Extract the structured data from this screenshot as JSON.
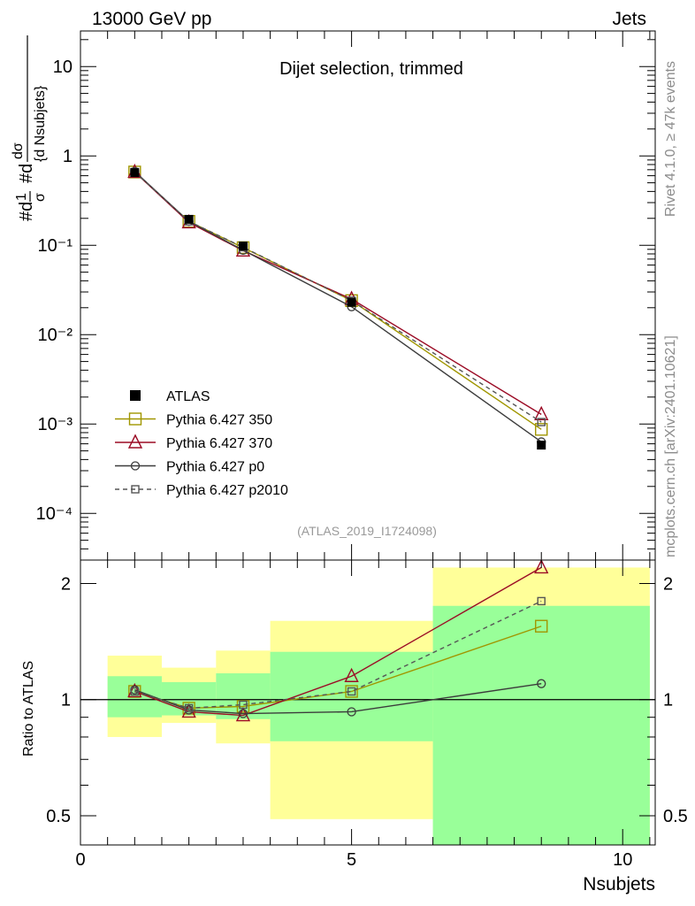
{
  "header": {
    "energy_label": "13000 GeV pp",
    "category_label": "Jets",
    "rivet_label": "Rivet 4.1.0, ≥ 47k events",
    "source_label": "mcplots.cern.ch [arXiv:2401.10621]"
  },
  "colors": {
    "data": "#000000",
    "p350": "#a09600",
    "p370": "#9b0b25",
    "p0": "#3c3c3c",
    "p2010": "#555555",
    "band_outer": "#ffff99",
    "band_inner": "#99ff99"
  },
  "chart_data": [
    {
      "type": "line",
      "scale": "log",
      "title": "Dijet selection, trimmed",
      "analysis_label": "(ATLAS_2019_I1724098)",
      "ylabel": "#d 1/σ #d dσ/{d Nsubjets}",
      "xlim": [
        0,
        10.6
      ],
      "ylim": [
        3e-05,
        25
      ],
      "ytick_labels": [
        "10",
        "1",
        "10⁻¹",
        "10⁻²",
        "10⁻³",
        "10⁻⁴"
      ],
      "ytick_values": [
        10,
        1,
        0.1,
        0.01,
        0.001,
        0.0001
      ],
      "x": [
        1,
        2,
        3,
        5,
        8.5
      ],
      "legend": [
        {
          "key": "data",
          "label": "ATLAS"
        },
        {
          "key": "p350",
          "label": "Pythia 6.427 350"
        },
        {
          "key": "p370",
          "label": "Pythia 6.427 370"
        },
        {
          "key": "p0",
          "label": "Pythia 6.427 p0"
        },
        {
          "key": "p2010",
          "label": "Pythia 6.427 p2010"
        }
      ],
      "series": [
        {
          "key": "data",
          "name": "ATLAS",
          "values": [
            0.65,
            0.195,
            0.098,
            0.023,
            0.00058
          ]
        },
        {
          "key": "p350",
          "name": "Pythia 6.427 350",
          "values": [
            0.66,
            0.185,
            0.094,
            0.024,
            0.00087
          ]
        },
        {
          "key": "p370",
          "name": "Pythia 6.427 370",
          "values": [
            0.66,
            0.18,
            0.087,
            0.025,
            0.00128
          ]
        },
        {
          "key": "p0",
          "name": "Pythia 6.427 p0",
          "values": [
            0.67,
            0.185,
            0.088,
            0.0205,
            0.00063
          ]
        },
        {
          "key": "p2010",
          "name": "Pythia 6.427 p2010",
          "values": [
            0.66,
            0.185,
            0.095,
            0.024,
            0.00105
          ]
        }
      ]
    },
    {
      "type": "line",
      "scale": "log",
      "ylabel": "Ratio to ATLAS",
      "xlabel": "Nsubjets",
      "xlim": [
        0,
        10.6
      ],
      "ylim": [
        0.42,
        2.3
      ],
      "xtick_labels": [
        "0",
        "5",
        "10"
      ],
      "xtick_values": [
        0,
        5,
        10
      ],
      "ytick_labels": [
        "0.5",
        "1",
        "2"
      ],
      "ytick_values": [
        0.5,
        1,
        2
      ],
      "x": [
        1,
        2,
        3,
        5,
        8.5
      ],
      "bands": [
        {
          "x0": 0.5,
          "x1": 1.5,
          "outer": [
            0.8,
            1.3
          ],
          "inner": [
            0.9,
            1.15
          ]
        },
        {
          "x0": 1.5,
          "x1": 2.5,
          "outer": [
            0.87,
            1.21
          ],
          "inner": [
            0.91,
            1.11
          ]
        },
        {
          "x0": 2.5,
          "x1": 3.5,
          "outer": [
            0.77,
            1.34
          ],
          "inner": [
            0.89,
            1.17
          ]
        },
        {
          "x0": 3.5,
          "x1": 6.5,
          "outer": [
            0.49,
            1.6
          ],
          "inner": [
            0.78,
            1.33
          ]
        },
        {
          "x0": 6.5,
          "x1": 10.5,
          "outer": [
            0.42,
            2.2
          ],
          "inner": [
            0.42,
            1.75
          ]
        }
      ],
      "series": [
        {
          "key": "p350",
          "name": "Pythia 6.427 350",
          "values": [
            1.05,
            0.95,
            0.96,
            1.05,
            1.55
          ]
        },
        {
          "key": "p370",
          "name": "Pythia 6.427 370",
          "values": [
            1.05,
            0.93,
            0.91,
            1.15,
            2.2
          ]
        },
        {
          "key": "p0",
          "name": "Pythia 6.427 p0",
          "values": [
            1.06,
            0.94,
            0.92,
            0.93,
            1.1
          ]
        },
        {
          "key": "p2010",
          "name": "Pythia 6.427 p2010",
          "values": [
            1.05,
            0.95,
            0.97,
            1.05,
            1.8
          ]
        }
      ]
    }
  ]
}
